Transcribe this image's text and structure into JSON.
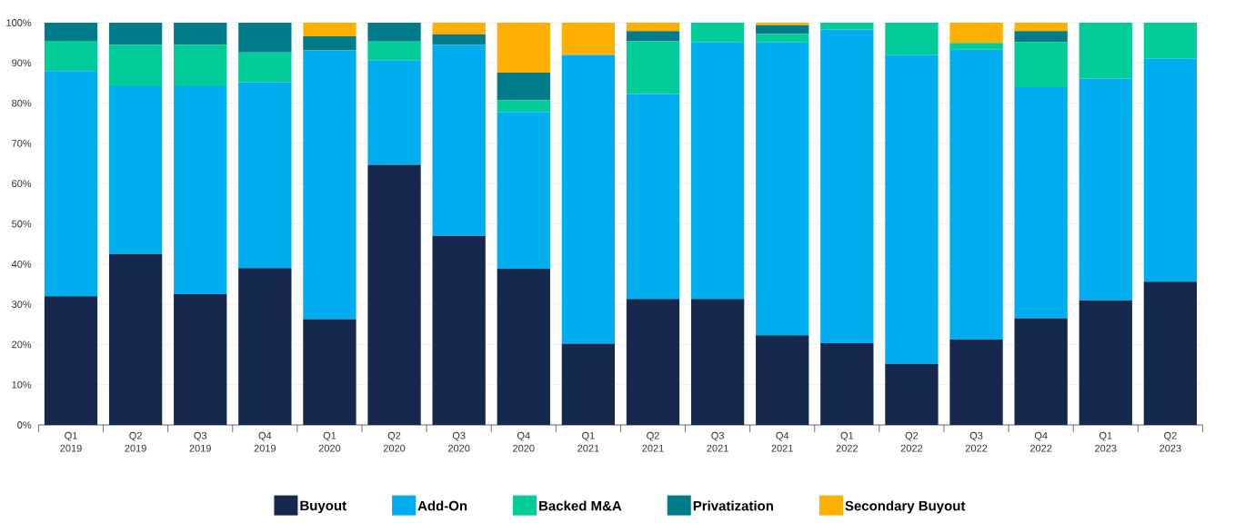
{
  "chart_data": {
    "type": "bar",
    "stacked": true,
    "categories": [
      "Q1 2019",
      "Q2 2019",
      "Q3 2019",
      "Q4 2019",
      "Q1 2020",
      "Q2 2020",
      "Q3 2020",
      "Q4 2020",
      "Q1 2021",
      "Q2 2021",
      "Q3 2021",
      "Q4 2021",
      "Q1 2022",
      "Q2 2022",
      "Q3 2022",
      "Q4 2022",
      "Q1 2023",
      "Q2 2023"
    ],
    "series": [
      {
        "name": "Buyout",
        "color": "#17284f",
        "values": [
          32,
          42.5,
          32.5,
          39,
          26.3,
          64.7,
          47,
          38.8,
          20.2,
          31.3,
          31.3,
          22.3,
          20.3,
          15.2,
          21.2,
          26.5,
          31,
          35.6
        ]
      },
      {
        "name": "Add-On",
        "color": "#00aeef",
        "values": [
          56,
          41.7,
          51.7,
          46.2,
          66.8,
          25.9,
          47.5,
          39,
          71.8,
          51,
          63.8,
          72.8,
          78,
          76.8,
          72.1,
          57.5,
          55.1,
          55.4
        ]
      },
      {
        "name": "Backed M&A",
        "color": "#00cc9a",
        "values": [
          7.5,
          10.3,
          10.3,
          7.4,
          0,
          4.7,
          0,
          2.9,
          0,
          13.1,
          4.9,
          2.1,
          1.7,
          8,
          1.7,
          11.2,
          13.9,
          9
        ]
      },
      {
        "name": "Privatization",
        "color": "#007b8a",
        "values": [
          4.5,
          5.5,
          5.5,
          7.4,
          3.5,
          4.7,
          2.6,
          6.9,
          0,
          2.5,
          0,
          2.2,
          0,
          0,
          0,
          2.7,
          0,
          0
        ]
      },
      {
        "name": "Secondary Buyout",
        "color": "#ffaf00",
        "values": [
          0,
          0,
          0,
          0,
          3.4,
          0,
          2.9,
          12.4,
          8,
          2.1,
          0,
          0.6,
          0,
          0,
          5,
          2.1,
          0,
          0
        ]
      }
    ],
    "ylim": [
      0,
      100
    ],
    "yticks": [
      {
        "value": 0,
        "label": "0%"
      },
      {
        "value": 10,
        "label": "10%"
      },
      {
        "value": 20,
        "label": "20%"
      },
      {
        "value": 30,
        "label": "30%"
      },
      {
        "value": 40,
        "label": "40%"
      },
      {
        "value": 50,
        "label": "50%"
      },
      {
        "value": 60,
        "label": "60%"
      },
      {
        "value": 70,
        "label": "70%"
      },
      {
        "value": 80,
        "label": "80%"
      },
      {
        "value": 90,
        "label": "90%"
      },
      {
        "value": 100,
        "label": "100%"
      }
    ],
    "grid": "y",
    "legend": "bottom"
  }
}
